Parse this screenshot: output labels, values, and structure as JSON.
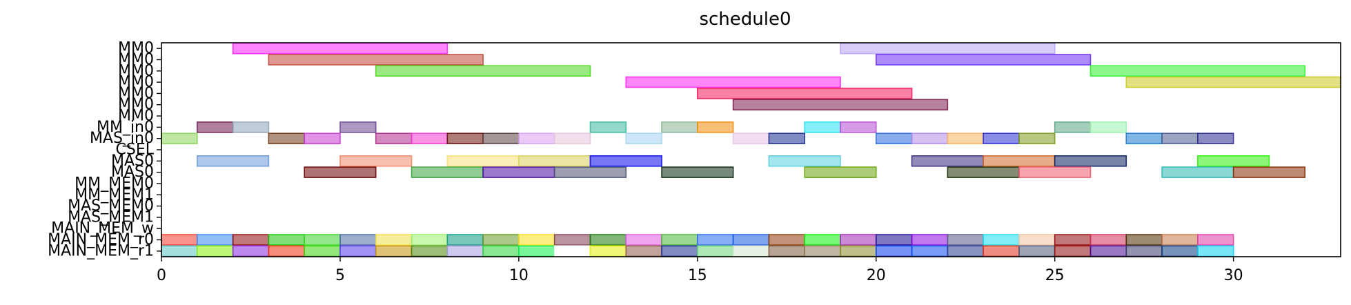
{
  "chart_data": {
    "type": "gantt",
    "title": "schedule0",
    "xlabel": "",
    "ylabel": "",
    "xlim": [
      0,
      33
    ],
    "x_ticks": [
      0,
      5,
      10,
      15,
      20,
      25,
      30
    ],
    "grid": false,
    "legend": "none",
    "rows": [
      "MM0",
      "MM0",
      "MM0",
      "MM0",
      "MM0",
      "MM0",
      "MM0",
      "MM_in0",
      "MAS_in0",
      "CSEL",
      "MAS0",
      "MAS0",
      "MM_MEM0",
      "MM_MEM1",
      "MAS_MEM0",
      "MAS_MEM1",
      "MAIN_MEM_w",
      "MAIN_MEM_r0",
      "MAIN_MEM_r1"
    ],
    "tasks": [
      {
        "row": 0,
        "start": 2,
        "end": 8,
        "color": "#ff22ff"
      },
      {
        "row": 0,
        "start": 19,
        "end": 25,
        "color": "#b9a2f5"
      },
      {
        "row": 1,
        "start": 3,
        "end": 9,
        "color": "#c0473a"
      },
      {
        "row": 1,
        "start": 20,
        "end": 26,
        "color": "#6a2ef5"
      },
      {
        "row": 2,
        "start": 6,
        "end": 12,
        "color": "#4ad61e"
      },
      {
        "row": 2,
        "start": 26,
        "end": 32,
        "color": "#2ff02f"
      },
      {
        "row": 3,
        "start": 13,
        "end": 19,
        "color": "#ff22ee"
      },
      {
        "row": 3,
        "start": 27,
        "end": 33,
        "color": "#c8c81e"
      },
      {
        "row": 4,
        "start": 15,
        "end": 21,
        "color": "#f2185a"
      },
      {
        "row": 5,
        "start": 16,
        "end": 22,
        "color": "#7a1a4a"
      },
      {
        "row": 7,
        "start": 1,
        "end": 2,
        "color": "#6e1a4e"
      },
      {
        "row": 7,
        "start": 2,
        "end": 3,
        "color": "#8fa2b8"
      },
      {
        "row": 7,
        "start": 5,
        "end": 6,
        "color": "#6a4690"
      },
      {
        "row": 7,
        "start": 12,
        "end": 13,
        "color": "#3ab89a"
      },
      {
        "row": 7,
        "start": 14,
        "end": 15,
        "color": "#8ab494"
      },
      {
        "row": 7,
        "start": 15,
        "end": 16,
        "color": "#f08a0a"
      },
      {
        "row": 7,
        "start": 18,
        "end": 19,
        "color": "#22e0f0"
      },
      {
        "row": 7,
        "start": 19,
        "end": 20,
        "color": "#b44ad0"
      },
      {
        "row": 7,
        "start": 25,
        "end": 26,
        "color": "#5aa684"
      },
      {
        "row": 7,
        "start": 26,
        "end": 27,
        "color": "#9af0ae"
      },
      {
        "row": 8,
        "start": 0,
        "end": 1,
        "color": "#8ad45a"
      },
      {
        "row": 8,
        "start": 3,
        "end": 4,
        "color": "#6e3a16"
      },
      {
        "row": 8,
        "start": 4,
        "end": 5,
        "color": "#c63ad0"
      },
      {
        "row": 8,
        "start": 6,
        "end": 7,
        "color": "#b02a8a"
      },
      {
        "row": 8,
        "start": 7,
        "end": 8,
        "color": "#f23ad0"
      },
      {
        "row": 8,
        "start": 8,
        "end": 9,
        "color": "#6a1008"
      },
      {
        "row": 8,
        "start": 9,
        "end": 10,
        "color": "#5a4040"
      },
      {
        "row": 8,
        "start": 10,
        "end": 11,
        "color": "#d8a0f0"
      },
      {
        "row": 8,
        "start": 11,
        "end": 12,
        "color": "#e6c4dc"
      },
      {
        "row": 8,
        "start": 13,
        "end": 14,
        "color": "#a4d4ee"
      },
      {
        "row": 8,
        "start": 16,
        "end": 17,
        "color": "#e6c4e6"
      },
      {
        "row": 8,
        "start": 17,
        "end": 18,
        "color": "#1a2e90"
      },
      {
        "row": 8,
        "start": 20,
        "end": 21,
        "color": "#2a6ae0"
      },
      {
        "row": 8,
        "start": 21,
        "end": 22,
        "color": "#b48ae6"
      },
      {
        "row": 8,
        "start": 22,
        "end": 23,
        "color": "#f8b460"
      },
      {
        "row": 8,
        "start": 23,
        "end": 24,
        "color": "#2a2ed0"
      },
      {
        "row": 8,
        "start": 24,
        "end": 25,
        "color": "#7a9a1a"
      },
      {
        "row": 8,
        "start": 27,
        "end": 28,
        "color": "#1a7ad0"
      },
      {
        "row": 8,
        "start": 28,
        "end": 29,
        "color": "#4a5a90"
      },
      {
        "row": 8,
        "start": 29,
        "end": 30,
        "color": "#2a2a90"
      },
      {
        "row": 10,
        "start": 1,
        "end": 3,
        "color": "#6a9ad8"
      },
      {
        "row": 10,
        "start": 5,
        "end": 7,
        "color": "#f28a6a"
      },
      {
        "row": 10,
        "start": 8,
        "end": 10,
        "color": "#fae07a"
      },
      {
        "row": 10,
        "start": 10,
        "end": 12,
        "color": "#d8d05a"
      },
      {
        "row": 10,
        "start": 12,
        "end": 14,
        "color": "#0a0af0"
      },
      {
        "row": 10,
        "start": 17,
        "end": 19,
        "color": "#5acedc"
      },
      {
        "row": 10,
        "start": 21,
        "end": 23,
        "color": "#3a2a80"
      },
      {
        "row": 10,
        "start": 23,
        "end": 25,
        "color": "#d06a2a"
      },
      {
        "row": 10,
        "start": 25,
        "end": 27,
        "color": "#0a2060"
      },
      {
        "row": 10,
        "start": 29,
        "end": 31,
        "color": "#2ef00a"
      },
      {
        "row": 11,
        "start": 4,
        "end": 6,
        "color": "#6e0000"
      },
      {
        "row": 11,
        "start": 7,
        "end": 9,
        "color": "#3aa43a"
      },
      {
        "row": 11,
        "start": 9,
        "end": 11,
        "color": "#4a0aa4"
      },
      {
        "row": 11,
        "start": 11,
        "end": 13,
        "color": "#4a5070"
      },
      {
        "row": 11,
        "start": 14,
        "end": 16,
        "color": "#0a2a10"
      },
      {
        "row": 11,
        "start": 18,
        "end": 20,
        "color": "#6aa40a"
      },
      {
        "row": 11,
        "start": 22,
        "end": 24,
        "color": "#1a2e00"
      },
      {
        "row": 11,
        "start": 24,
        "end": 26,
        "color": "#f05a70"
      },
      {
        "row": 11,
        "start": 28,
        "end": 30,
        "color": "#2ab8b4"
      },
      {
        "row": 11,
        "start": 30,
        "end": 32,
        "color": "#8a2a00"
      },
      {
        "row": 17,
        "start": 0,
        "end": 1,
        "color": "#f03a2a"
      },
      {
        "row": 17,
        "start": 1,
        "end": 2,
        "color": "#3a8af0"
      },
      {
        "row": 17,
        "start": 2,
        "end": 3,
        "color": "#900a0a"
      },
      {
        "row": 17,
        "start": 3,
        "end": 4,
        "color": "#1ac40a"
      },
      {
        "row": 17,
        "start": 4,
        "end": 5,
        "color": "#3ad42a"
      },
      {
        "row": 17,
        "start": 5,
        "end": 6,
        "color": "#4a6aa4"
      },
      {
        "row": 17,
        "start": 6,
        "end": 7,
        "color": "#f0e04a"
      },
      {
        "row": 17,
        "start": 7,
        "end": 8,
        "color": "#9af06a"
      },
      {
        "row": 17,
        "start": 8,
        "end": 9,
        "color": "#0a9a80"
      },
      {
        "row": 17,
        "start": 9,
        "end": 10,
        "color": "#6a9a2a"
      },
      {
        "row": 17,
        "start": 10,
        "end": 11,
        "color": "#f8e01a"
      },
      {
        "row": 17,
        "start": 11,
        "end": 12,
        "color": "#804050"
      },
      {
        "row": 17,
        "start": 12,
        "end": 13,
        "color": "#1a7a0a"
      },
      {
        "row": 17,
        "start": 13,
        "end": 14,
        "color": "#e05ae0"
      },
      {
        "row": 17,
        "start": 14,
        "end": 15,
        "color": "#4ab43a"
      },
      {
        "row": 17,
        "start": 15,
        "end": 16,
        "color": "#2a6af0"
      },
      {
        "row": 17,
        "start": 16,
        "end": 17,
        "color": "#1a5ae0"
      },
      {
        "row": 17,
        "start": 17,
        "end": 18,
        "color": "#903a0a"
      },
      {
        "row": 17,
        "start": 18,
        "end": 19,
        "color": "#0af00a"
      },
      {
        "row": 17,
        "start": 19,
        "end": 20,
        "color": "#a02ab4"
      },
      {
        "row": 17,
        "start": 20,
        "end": 21,
        "color": "#1a0a90"
      },
      {
        "row": 17,
        "start": 21,
        "end": 22,
        "color": "#8a0ae0"
      },
      {
        "row": 17,
        "start": 22,
        "end": 23,
        "color": "#5a5a8a"
      },
      {
        "row": 17,
        "start": 23,
        "end": 24,
        "color": "#1ae0f0"
      },
      {
        "row": 17,
        "start": 24,
        "end": 25,
        "color": "#f0c4a0"
      },
      {
        "row": 17,
        "start": 25,
        "end": 26,
        "color": "#900a0a"
      },
      {
        "row": 17,
        "start": 26,
        "end": 27,
        "color": "#d0305a"
      },
      {
        "row": 17,
        "start": 27,
        "end": 28,
        "color": "#4a2a00"
      },
      {
        "row": 17,
        "start": 28,
        "end": 29,
        "color": "#c47a4a"
      },
      {
        "row": 17,
        "start": 29,
        "end": 30,
        "color": "#e03aa4"
      },
      {
        "row": 18,
        "start": 0,
        "end": 1,
        "color": "#5ac4c4"
      },
      {
        "row": 18,
        "start": 1,
        "end": 2,
        "color": "#8af00a"
      },
      {
        "row": 18,
        "start": 2,
        "end": 3,
        "color": "#8a2ae0"
      },
      {
        "row": 18,
        "start": 3,
        "end": 4,
        "color": "#f0300a"
      },
      {
        "row": 18,
        "start": 4,
        "end": 5,
        "color": "#3ad40a"
      },
      {
        "row": 18,
        "start": 5,
        "end": 6,
        "color": "#5a3af0"
      },
      {
        "row": 18,
        "start": 6,
        "end": 7,
        "color": "#c4900a"
      },
      {
        "row": 18,
        "start": 7,
        "end": 8,
        "color": "#4a8a0a"
      },
      {
        "row": 18,
        "start": 8,
        "end": 9,
        "color": "#a49ae0"
      },
      {
        "row": 18,
        "start": 9,
        "end": 10,
        "color": "#2ad43a"
      },
      {
        "row": 18,
        "start": 10,
        "end": 11,
        "color": "#0af04a"
      },
      {
        "row": 18,
        "start": 11,
        "end": 12,
        "color": "#ffffff"
      },
      {
        "row": 18,
        "start": 12,
        "end": 13,
        "color": "#e0f00a"
      },
      {
        "row": 18,
        "start": 13,
        "end": 14,
        "color": "#905a4a"
      },
      {
        "row": 18,
        "start": 14,
        "end": 15,
        "color": "#1a2a90"
      },
      {
        "row": 18,
        "start": 15,
        "end": 16,
        "color": "#6ad47a"
      },
      {
        "row": 18,
        "start": 16,
        "end": 17,
        "color": "#d4e4d0"
      },
      {
        "row": 18,
        "start": 17,
        "end": 18,
        "color": "#805a3a"
      },
      {
        "row": 18,
        "start": 18,
        "end": 19,
        "color": "#907a5a"
      },
      {
        "row": 18,
        "start": 19,
        "end": 20,
        "color": "#8a8a2a"
      },
      {
        "row": 18,
        "start": 20,
        "end": 21,
        "color": "#0a3af0"
      },
      {
        "row": 18,
        "start": 21,
        "end": 22,
        "color": "#0a4af0"
      },
      {
        "row": 18,
        "start": 22,
        "end": 23,
        "color": "#2a3a90"
      },
      {
        "row": 18,
        "start": 23,
        "end": 24,
        "color": "#e0301a"
      },
      {
        "row": 18,
        "start": 24,
        "end": 25,
        "color": "#4a5a7a"
      },
      {
        "row": 18,
        "start": 25,
        "end": 26,
        "color": "#900a0a"
      },
      {
        "row": 18,
        "start": 26,
        "end": 27,
        "color": "#4a0a90"
      },
      {
        "row": 18,
        "start": 27,
        "end": 28,
        "color": "#3a3a6a"
      },
      {
        "row": 18,
        "start": 28,
        "end": 29,
        "color": "#0a3a80"
      },
      {
        "row": 18,
        "start": 29,
        "end": 30,
        "color": "#0ad0f0"
      }
    ]
  }
}
